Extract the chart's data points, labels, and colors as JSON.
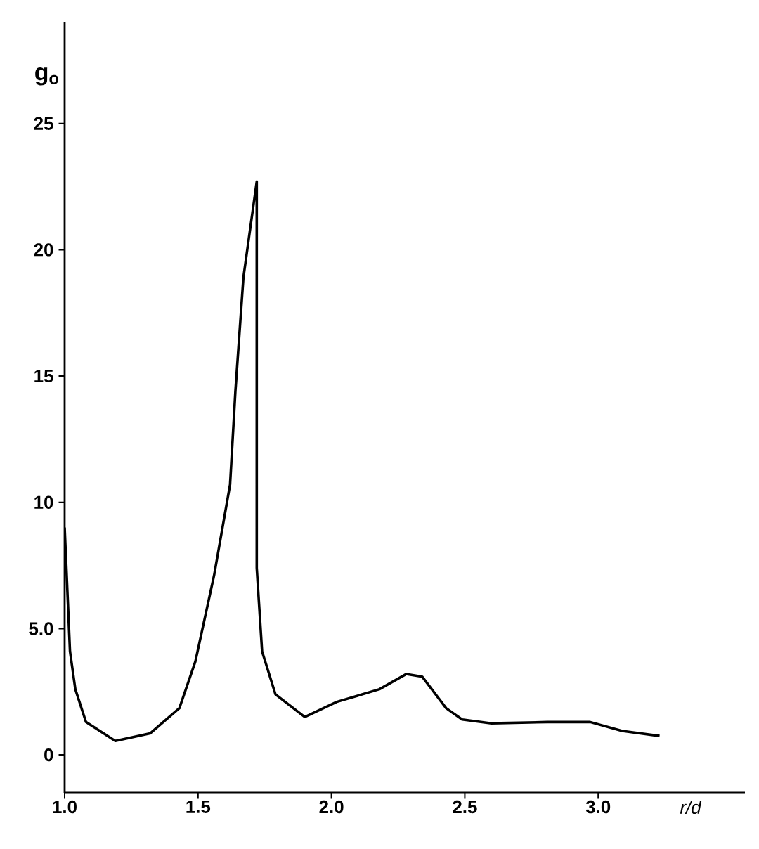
{
  "chart_data": {
    "type": "line",
    "xlabel": "r/d",
    "ylabel": "g$_{o}$",
    "color": "#000000",
    "x": [
      1.0,
      1.02,
      1.04,
      1.08,
      1.19,
      1.32,
      1.43,
      1.49,
      1.56,
      1.62,
      1.64,
      1.67,
      1.72,
      1.72,
      1.74,
      1.79,
      1.9,
      2.02,
      2.18,
      2.28,
      2.34,
      2.43,
      2.49,
      2.6,
      2.81,
      2.97,
      3.09,
      3.23
    ],
    "values": [
      9,
      4.1,
      2.6,
      1.3,
      0.55,
      0.85,
      1.85,
      3.7,
      7.1,
      10.7,
      14.4,
      18.9,
      22.7,
      7.4,
      4.1,
      2.4,
      1.5,
      2.1,
      2.6,
      3.2,
      3.1,
      1.85,
      1.4,
      1.25,
      1.3,
      1.3,
      0.95,
      0.75
    ],
    "xlim": [
      1.0,
      3.55
    ],
    "ylim": [
      -1.5,
      29
    ],
    "xticks": [
      {
        "value": 1,
        "label": "1.0"
      },
      1.5,
      {
        "value": 2,
        "label": "2.0"
      },
      2.5,
      {
        "value": 3,
        "label": "3.0"
      }
    ],
    "yticks": [
      0,
      {
        "value": 5,
        "label": "5.0"
      },
      10,
      15,
      20,
      25
    ],
    "marker": "none",
    "line_style": "solid"
  }
}
